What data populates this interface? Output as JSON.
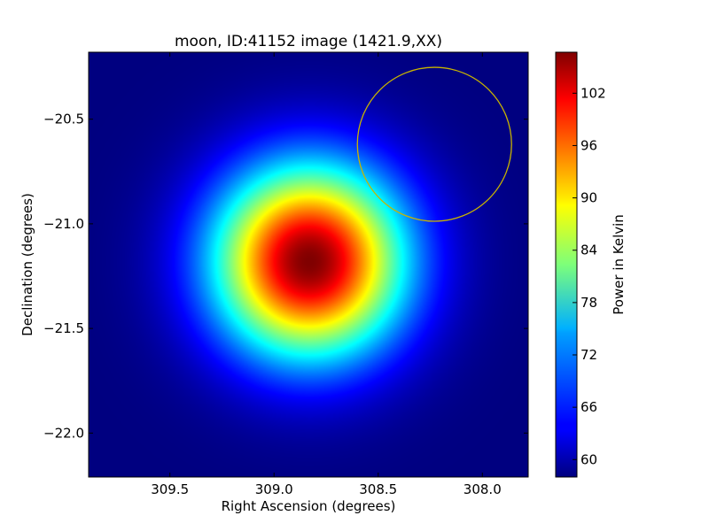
{
  "chart_data": {
    "type": "heatmap",
    "title": "moon, ID:41152 image (1421.9,XX)",
    "xlabel": "Right Ascension (degrees)",
    "ylabel": "Declination (degrees)",
    "xlim": [
      309.89,
      307.78
    ],
    "ylim": [
      -22.21,
      -20.18
    ],
    "x_axis_inverted": true,
    "xticks": [
      309.5,
      309.0,
      308.5,
      308.0
    ],
    "xtick_labels": [
      "309.5",
      "309.0",
      "308.5",
      "308.0"
    ],
    "yticks": [
      -20.5,
      -21.0,
      -21.5,
      -22.0
    ],
    "ytick_labels": [
      "−20.5",
      "−21.0",
      "−21.5",
      "−22.0"
    ],
    "colormap": "jet",
    "source": {
      "ra_center": 308.83,
      "dec_center": -21.18,
      "sigma_deg": 0.32,
      "peak_kelvin": 106.7,
      "background_kelvin": 58.0
    },
    "circle": {
      "ra_center": 308.23,
      "dec_center": -20.62,
      "radius_deg": 0.37,
      "color": "#c8b400"
    },
    "colorbar": {
      "label": "Power in Kelvin",
      "min": 58.0,
      "max": 106.7,
      "ticks": [
        60,
        66,
        72,
        78,
        84,
        90,
        96,
        102
      ],
      "tick_labels": [
        "60",
        "66",
        "72",
        "78",
        "84",
        "90",
        "96",
        "102"
      ]
    },
    "grid": false,
    "legend": "none"
  }
}
